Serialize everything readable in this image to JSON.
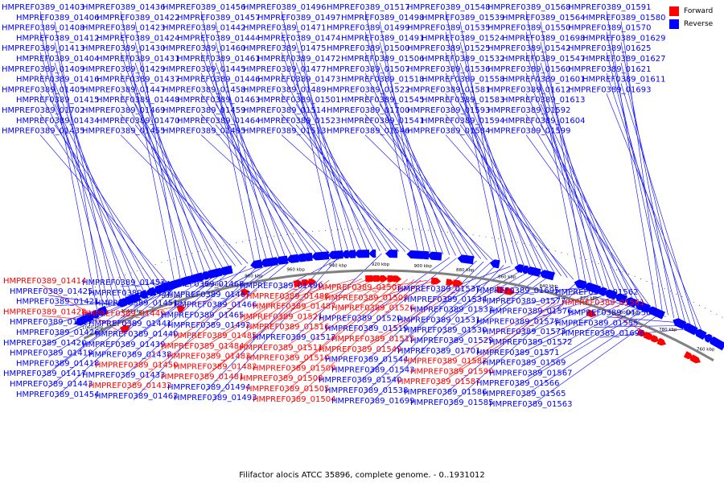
{
  "colors": {
    "forward": "#ff0000",
    "reverse": "#0000ff",
    "backbone": "#808080"
  },
  "legend": {
    "forward_label": "Forward",
    "reverse_label": "Reverse"
  },
  "caption": "Filifactor alocis ATCC 35896, complete genome. - 0..1931012",
  "scale_labels": [
    "1060 kbp",
    "1040 kbp",
    "1020 kbp",
    "1000 kbp",
    "980 kbp",
    "960 kbp",
    "940 kbp",
    "920 kbp",
    "900 kbp",
    "880 kbp",
    "860 kbp",
    "840 kbp",
    "820 kbp",
    "800 kbp",
    "780 kbp",
    "760 kbp"
  ],
  "labels_top": [
    "HMPREF0389_01403",
    "HMPREF0389_01406",
    "HMPREF0389_01408",
    "HMPREF0389_01412",
    "HMPREF0389_01413",
    "HMPREF0389_01404",
    "HMPREF0389_01409",
    "HMPREF0389_01416",
    "HMPREF0389_01405",
    "HMPREF0389_01415",
    "HMPREF0389_01702",
    "HMPREF0389_01434",
    "HMPREF0389_01435",
    "HMPREF0389_01436",
    "HMPREF0389_01422",
    "HMPREF0389_01423",
    "HMPREF0389_01424",
    "HMPREF0389_01430",
    "HMPREF0389_01431",
    "HMPREF0389_01429",
    "HMPREF0389_01437",
    "HMPREF0389_01447",
    "HMPREF0389_01448",
    "HMPREF0389_01469",
    "HMPREF0389_01470",
    "HMPREF0389_01455",
    "HMPREF0389_01456",
    "HMPREF0389_01457",
    "HMPREF0389_01442",
    "HMPREF0389_01444",
    "HMPREF0389_01460",
    "HMPREF0389_01461",
    "HMPREF0389_01445",
    "HMPREF0389_01446",
    "HMPREF0389_01458",
    "HMPREF0389_01463",
    "HMPREF0389_01459",
    "HMPREF0389_01464",
    "HMPREF0389_01495",
    "HMPREF0389_01496",
    "HMPREF0389_01497",
    "HMPREF0389_01471",
    "HMPREF0389_01474",
    "HMPREF0389_01475",
    "HMPREF0389_01472",
    "HMPREF0389_01477",
    "HMPREF0389_01473",
    "HMPREF0389_01489",
    "HMPREF0389_01501",
    "HMPREF0389_01514",
    "HMPREF0389_01523",
    "HMPREF0389_01513",
    "HMPREF0389_01517",
    "HMPREF0389_01498",
    "HMPREF0389_01499",
    "HMPREF0389_01491",
    "HMPREF0389_01500",
    "HMPREF0389_01506",
    "HMPREF0389_01507",
    "HMPREF0389_01518",
    "HMPREF0389_01522",
    "HMPREF0389_01545",
    "HMPREF0389_01700",
    "HMPREF0389_01541",
    "HMPREF0389_01546",
    "HMPREF0389_01548",
    "HMPREF0389_01539",
    "HMPREF0389_01535",
    "HMPREF0389_01524",
    "HMPREF0389_01525",
    "HMPREF0389_01532",
    "HMPREF0389_01536",
    "HMPREF0389_01558",
    "HMPREF0389_01581",
    "HMPREF0389_01583",
    "HMPREF0389_01593",
    "HMPREF0389_01594",
    "HMPREF0389_01584",
    "HMPREF0389_01568",
    "HMPREF0389_01564",
    "HMPREF0389_01550",
    "HMPREF0389_01698",
    "HMPREF0389_01542",
    "HMPREF0389_01547",
    "HMPREF0389_01560",
    "HMPREF0389_01601",
    "HMPREF0389_01612",
    "HMPREF0389_01613",
    "HMPREF0389_01592",
    "HMPREF0389_01604",
    "HMPREF0389_01599",
    "HMPREF0389_01591",
    "HMPREF0389_01580",
    "HMPREF0389_01570",
    "HMPREF0389_01629",
    "HMPREF0389_01625",
    "HMPREF0389_01627",
    "HMPREF0389_01621",
    "HMPREF0389_01611",
    "HMPREF0389_01693"
  ],
  "labels_bottom": [
    {
      "text": "HMPREF0389_01414",
      "strand": "forward"
    },
    {
      "text": "HMPREF0389_01425",
      "strand": "reverse"
    },
    {
      "text": "HMPREF0389_01421",
      "strand": "reverse"
    },
    {
      "text": "HMPREF0389_01428",
      "strand": "forward"
    },
    {
      "text": "HMPREF0389_01427",
      "strand": "reverse"
    },
    {
      "text": "HMPREF0389_01426",
      "strand": "reverse"
    },
    {
      "text": "HMPREF0389_01420",
      "strand": "reverse"
    },
    {
      "text": "HMPREF0389_01419",
      "strand": "reverse"
    },
    {
      "text": "HMPREF0389_01418",
      "strand": "reverse"
    },
    {
      "text": "HMPREF0389_01417",
      "strand": "reverse"
    },
    {
      "text": "HMPREF0389_01443",
      "strand": "reverse"
    },
    {
      "text": "HMPREF0389_01454",
      "strand": "reverse"
    },
    {
      "text": "HMPREF0389_01453",
      "strand": "reverse"
    },
    {
      "text": "HMPREF0389_01452",
      "strand": "reverse"
    },
    {
      "text": "HMPREF0389_01451",
      "strand": "reverse"
    },
    {
      "text": "HMPREF0389_01449",
      "strand": "forward"
    },
    {
      "text": "HMPREF0389_01441",
      "strand": "reverse"
    },
    {
      "text": "HMPREF0389_01440",
      "strand": "reverse"
    },
    {
      "text": "HMPREF0389_01439",
      "strand": "reverse"
    },
    {
      "text": "HMPREF0389_01438",
      "strand": "reverse"
    },
    {
      "text": "HMPREF0389_01450",
      "strand": "forward"
    },
    {
      "text": "HMPREF0389_01433",
      "strand": "reverse"
    },
    {
      "text": "HMPREF0389_01432",
      "strand": "forward"
    },
    {
      "text": "HMPREF0389_01462",
      "strand": "reverse"
    },
    {
      "text": "HMPREF0389_01468",
      "strand": "reverse"
    },
    {
      "text": "HMPREF0389_01467",
      "strand": "reverse"
    },
    {
      "text": "HMPREF0389_01466",
      "strand": "reverse"
    },
    {
      "text": "HMPREF0389_01465",
      "strand": "reverse"
    },
    {
      "text": "HMPREF0389_01492",
      "strand": "reverse"
    },
    {
      "text": "HMPREF0389_01485",
      "strand": "forward"
    },
    {
      "text": "HMPREF0389_01484",
      "strand": "forward"
    },
    {
      "text": "HMPREF0389_01483",
      "strand": "forward"
    },
    {
      "text": "HMPREF0389_01482",
      "strand": "forward"
    },
    {
      "text": "HMPREF0389_01481",
      "strand": "forward"
    },
    {
      "text": "HMPREF0389_01494",
      "strand": "reverse"
    },
    {
      "text": "HMPREF0389_01493",
      "strand": "reverse"
    },
    {
      "text": "HMPREF0389_01490",
      "strand": "reverse"
    },
    {
      "text": "HMPREF0389_01488",
      "strand": "forward"
    },
    {
      "text": "HMPREF0389_01487",
      "strand": "forward"
    },
    {
      "text": "HMPREF0389_01521",
      "strand": "forward"
    },
    {
      "text": "HMPREF0389_01516",
      "strand": "forward"
    },
    {
      "text": "HMPREF0389_01512",
      "strand": "reverse"
    },
    {
      "text": "HMPREF0389_01511",
      "strand": "forward"
    },
    {
      "text": "HMPREF0389_01510",
      "strand": "forward"
    },
    {
      "text": "HMPREF0389_01509",
      "strand": "forward"
    },
    {
      "text": "HMPREF0389_01508",
      "strand": "forward"
    },
    {
      "text": "HMPREF0389_01505",
      "strand": "forward"
    },
    {
      "text": "HMPREF0389_01504",
      "strand": "forward"
    },
    {
      "text": "HMPREF0389_01503",
      "strand": "forward"
    },
    {
      "text": "HMPREF0389_01502",
      "strand": "forward"
    },
    {
      "text": "HMPREF0389_01526",
      "strand": "forward"
    },
    {
      "text": "HMPREF0389_01520",
      "strand": "reverse"
    },
    {
      "text": "HMPREF0389_01519",
      "strand": "reverse"
    },
    {
      "text": "HMPREF0389_01515",
      "strand": "forward"
    },
    {
      "text": "HMPREF0389_01549",
      "strand": "forward"
    },
    {
      "text": "HMPREF0389_01544",
      "strand": "reverse"
    },
    {
      "text": "HMPREF0389_01543",
      "strand": "reverse"
    },
    {
      "text": "HMPREF0389_01540",
      "strand": "reverse"
    },
    {
      "text": "HMPREF0389_01538",
      "strand": "reverse"
    },
    {
      "text": "HMPREF0389_01699",
      "strand": "reverse"
    },
    {
      "text": "HMPREF0389_01537",
      "strand": "reverse"
    },
    {
      "text": "HMPREF0389_01534",
      "strand": "reverse"
    },
    {
      "text": "HMPREF0389_01533",
      "strand": "reverse"
    },
    {
      "text": "HMPREF0389_01531",
      "strand": "reverse"
    },
    {
      "text": "HMPREF0389_01530",
      "strand": "reverse"
    },
    {
      "text": "HMPREF0389_01529",
      "strand": "reverse"
    },
    {
      "text": "HMPREF0389_01701",
      "strand": "reverse"
    },
    {
      "text": "HMPREF0389_01582",
      "strand": "forward"
    },
    {
      "text": "HMPREF0389_01590",
      "strand": "forward"
    },
    {
      "text": "HMPREF0389_01587",
      "strand": "forward"
    },
    {
      "text": "HMPREF0389_01586",
      "strand": "reverse"
    },
    {
      "text": "HMPREF0389_01585",
      "strand": "reverse"
    },
    {
      "text": "HMPREF0389_01695",
      "strand": "reverse"
    },
    {
      "text": "HMPREF0389_01577",
      "strand": "reverse"
    },
    {
      "text": "HMPREF0389_01576",
      "strand": "reverse"
    },
    {
      "text": "HMPREF0389_01575",
      "strand": "reverse"
    },
    {
      "text": "HMPREF0389_01573",
      "strand": "reverse"
    },
    {
      "text": "HMPREF0389_01572",
      "strand": "reverse"
    },
    {
      "text": "HMPREF0389_01571",
      "strand": "reverse"
    },
    {
      "text": "HMPREF0389_01569",
      "strand": "reverse"
    },
    {
      "text": "HMPREF0389_01567",
      "strand": "reverse"
    },
    {
      "text": "HMPREF0389_01566",
      "strand": "reverse"
    },
    {
      "text": "HMPREF0389_01565",
      "strand": "reverse"
    },
    {
      "text": "HMPREF0389_01563",
      "strand": "reverse"
    },
    {
      "text": "HMPREF0389_01562",
      "strand": "reverse"
    },
    {
      "text": "HMPREF0389_01561",
      "strand": "forward"
    },
    {
      "text": "HMPREF0389_01556",
      "strand": "reverse"
    },
    {
      "text": "HMPREF0389_01555",
      "strand": "reverse"
    },
    {
      "text": "HMPREF0389_01696",
      "strand": "reverse"
    }
  ]
}
